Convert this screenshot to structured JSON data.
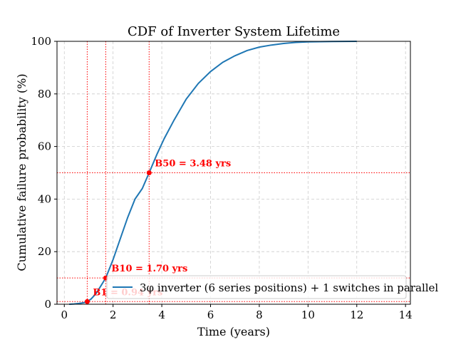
{
  "chart_data": {
    "type": "line",
    "title": "CDF of Inverter System Lifetime",
    "xlabel": "Time (years)",
    "ylabel": "Cumulative failure probability (%)",
    "xlim": [
      -0.3,
      14.2
    ],
    "ylim": [
      0,
      100
    ],
    "xticks": [
      0,
      2,
      4,
      6,
      8,
      10,
      12,
      14
    ],
    "yticks": [
      0,
      20,
      40,
      60,
      80,
      100
    ],
    "grid": true,
    "legend_position": "lower-right",
    "colors": {
      "series": "#1f77b4",
      "reference": "#ff0000"
    },
    "series": [
      {
        "name": "3φ inverter (6 series positions) + 1 switches in parallel",
        "x": [
          0.2,
          0.4,
          0.6,
          0.8,
          0.94,
          1.1,
          1.3,
          1.5,
          1.7,
          2.0,
          2.3,
          2.6,
          2.9,
          3.2,
          3.48,
          3.8,
          4.1,
          4.5,
          5.0,
          5.5,
          6.0,
          6.5,
          7.0,
          7.5,
          8.0,
          8.5,
          9.0,
          9.5,
          10.0,
          11.0,
          12.0
        ],
        "y": [
          0,
          0.1,
          0.3,
          0.6,
          1,
          2,
          4,
          7,
          10,
          17,
          25,
          33,
          40,
          44,
          50,
          57,
          63,
          70,
          78,
          84,
          88.5,
          92,
          94.5,
          96.5,
          97.8,
          98.6,
          99.2,
          99.6,
          99.8,
          99.95,
          100
        ]
      }
    ],
    "annotations": [
      {
        "label": "B1 = 0.94 yrs",
        "x": 0.94,
        "y": 1
      },
      {
        "label": "B10 = 1.70 yrs",
        "x": 1.7,
        "y": 10
      },
      {
        "label": "B50 = 3.48 yrs",
        "x": 3.48,
        "y": 50
      }
    ]
  }
}
